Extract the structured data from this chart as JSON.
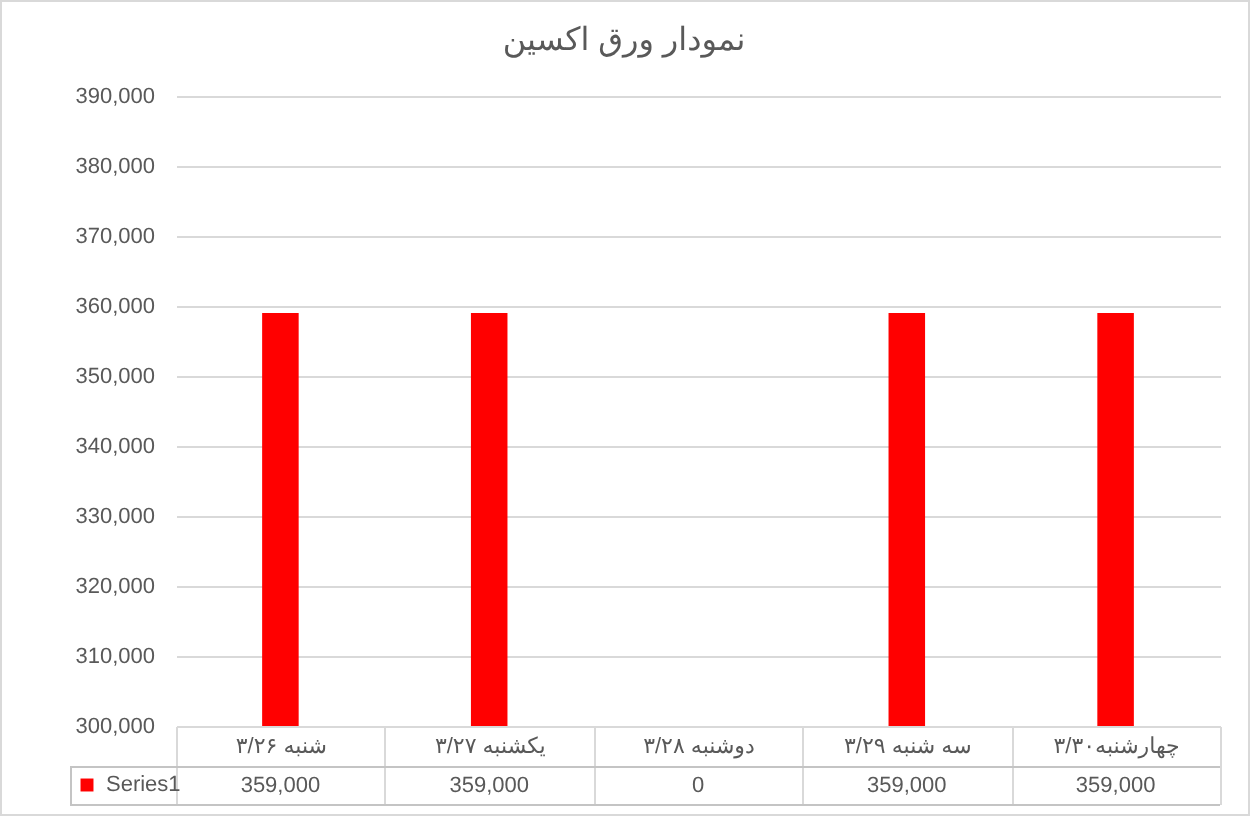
{
  "chart_data": {
    "type": "bar",
    "title": "نمودار ورق اکسین",
    "categories": [
      "شنبه ۳/۲۶",
      "یکشنبه ۳/۲۷",
      "دوشنبه ۳/۲۸",
      "سه شنبه ۳/۲۹",
      "چهارشنبه۳/۳۰"
    ],
    "series": [
      {
        "name": "Series1",
        "color": "#ff0000",
        "values": [
          359000,
          359000,
          null,
          359000,
          359000
        ],
        "value_labels": [
          "359,000",
          "359,000",
          "0",
          "359,000",
          "359,000"
        ]
      }
    ],
    "ylim": [
      300000,
      390000
    ],
    "yticks": [
      {
        "value": 300000,
        "label": "300,000"
      },
      {
        "value": 310000,
        "label": "310,000"
      },
      {
        "value": 320000,
        "label": "320,000"
      },
      {
        "value": 330000,
        "label": "330,000"
      },
      {
        "value": 340000,
        "label": "340,000"
      },
      {
        "value": 350000,
        "label": "350,000"
      },
      {
        "value": 360000,
        "label": "360,000"
      },
      {
        "value": 370000,
        "label": "370,000"
      },
      {
        "value": 380000,
        "label": "380,000"
      },
      {
        "value": 390000,
        "label": "390,000"
      }
    ],
    "grid": "y",
    "legend": "bottom left"
  }
}
